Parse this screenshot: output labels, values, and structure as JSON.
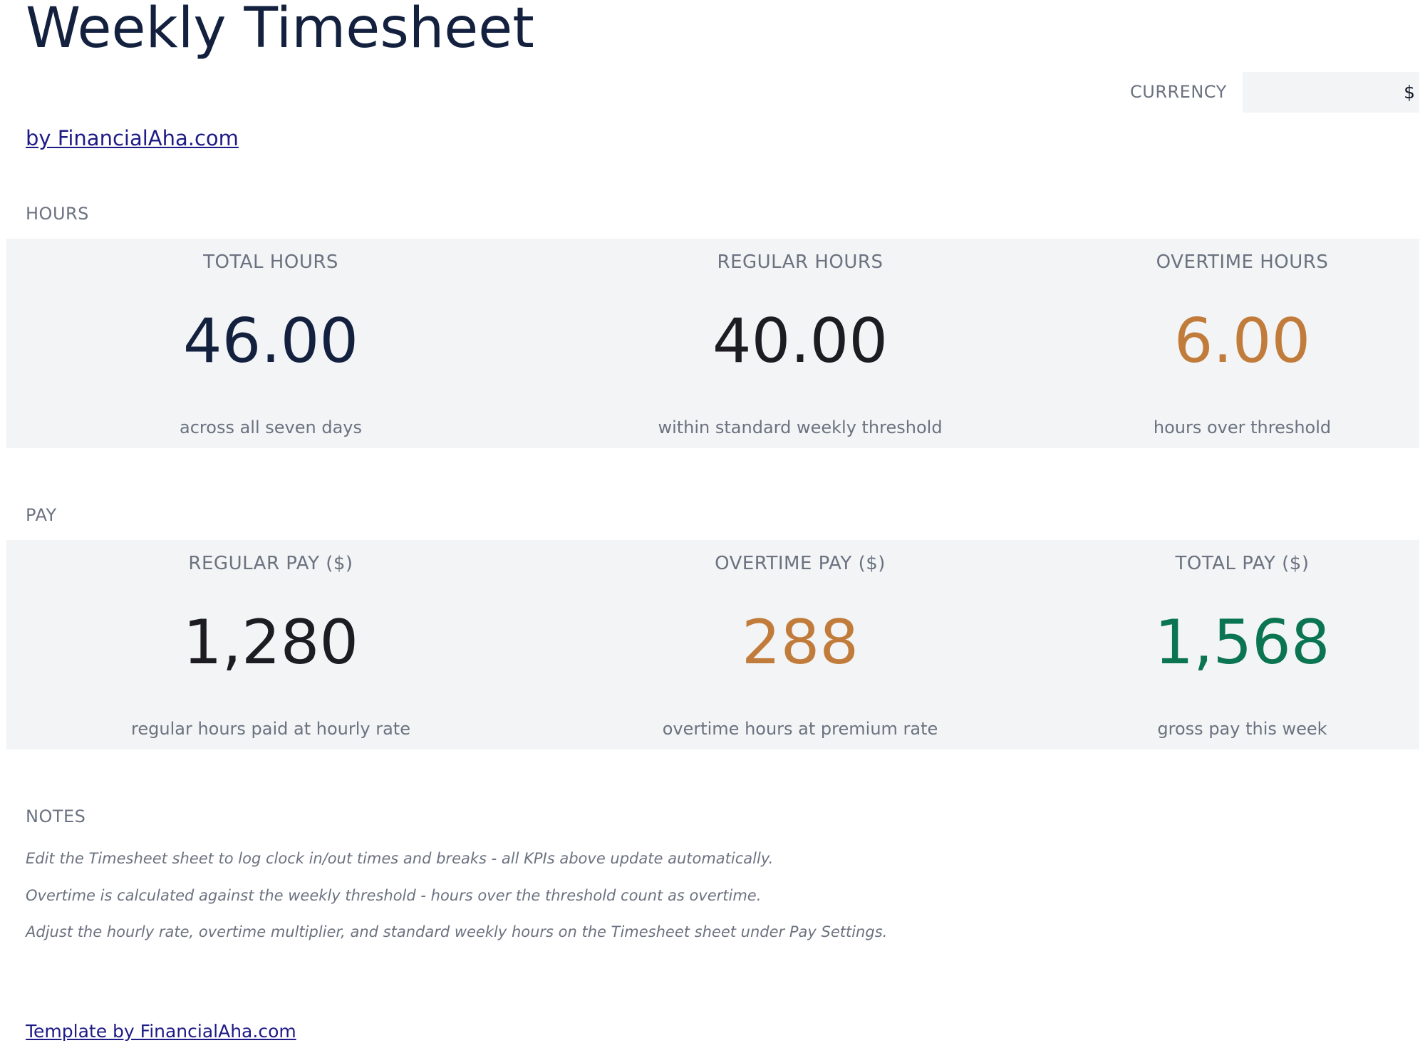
{
  "header": {
    "title": "Weekly Timesheet",
    "byline_link": "by FinancialAha.com"
  },
  "currency": {
    "label": "CURRENCY",
    "value": "$"
  },
  "hours": {
    "section_label": "HOURS",
    "kpis": [
      {
        "label": "TOTAL HOURS",
        "value": "46.00",
        "sub": "across all seven days",
        "color": "#13213f"
      },
      {
        "label": "REGULAR HOURS",
        "value": "40.00",
        "sub": "within standard weekly threshold",
        "color": "#1c1c22"
      },
      {
        "label": "OVERTIME HOURS",
        "value": "6.00",
        "sub": "hours over threshold",
        "color": "#c17c3c"
      }
    ]
  },
  "pay": {
    "section_label": "PAY",
    "kpis": [
      {
        "label": "REGULAR PAY ($)",
        "value": "1,280",
        "sub": "regular hours paid at hourly rate",
        "color": "#1c1c22"
      },
      {
        "label": "OVERTIME PAY ($)",
        "value": "288",
        "sub": "overtime hours at premium rate",
        "color": "#c17c3c"
      },
      {
        "label": "TOTAL PAY ($)",
        "value": "1,568",
        "sub": "gross pay this week",
        "color": "#0b7450"
      }
    ]
  },
  "notes": {
    "section_label": "NOTES",
    "items": [
      "Edit the Timesheet sheet to log clock in/out times and breaks - all KPIs above update automatically.",
      "Overtime is calculated against the weekly threshold - hours over the threshold count as overtime.",
      "Adjust the hourly rate, overtime multiplier, and standard weekly hours on the Timesheet sheet under Pay Settings."
    ]
  },
  "footer": {
    "link": "Template by FinancialAha.com"
  }
}
